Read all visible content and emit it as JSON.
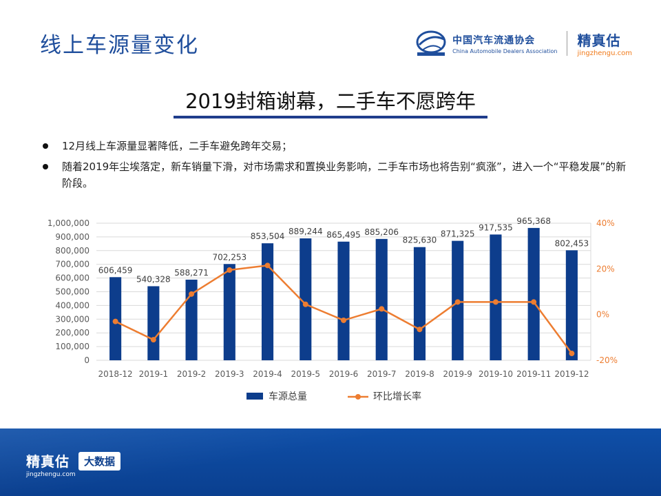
{
  "header": {
    "title": "线上车源量变化",
    "cada_name_cn": "中国汽车流通协会",
    "cada_name_en": "China Automobile Dealers Association",
    "brand_cn": "精真估",
    "brand_url": "jingzhengu.com"
  },
  "headline": "2019封箱谢幕，二手车不愿跨年",
  "bullets": [
    "12月线上车源量显著降低，二手车避免跨年交易；",
    "随着2019年尘埃落定，新车销量下滑，对市场需求和置换业务影响，二手车市场也将告别“疯涨”，进入一个“平稳发展”的新阶段。"
  ],
  "footer": {
    "brand_cn": "精真估",
    "brand_url": "jingzhengu.com",
    "tag": "大数据"
  },
  "colors": {
    "brand_blue": "#1f4e9c",
    "bar": "#0d3d8c",
    "line": "#ed7d31",
    "footer": "#0f4fa8"
  },
  "chart_data": {
    "type": "bar+line",
    "categories": [
      "2018-12",
      "2019-1",
      "2019-2",
      "2019-3",
      "2019-4",
      "2019-5",
      "2019-6",
      "2019-7",
      "2019-8",
      "2019-9",
      "2019-10",
      "2019-11",
      "2019-12"
    ],
    "series": [
      {
        "name": "车源总量",
        "type": "bar",
        "axis": "left",
        "values": [
          606459,
          540328,
          588271,
          702253,
          853504,
          889244,
          865495,
          885206,
          825630,
          871325,
          917535,
          965368,
          802453
        ],
        "labels": [
          "606,459",
          "540,328",
          "588,271",
          "702,253",
          "853,504",
          "889,244",
          "865,495",
          "885,206",
          "825,630",
          "871,325",
          "917,535",
          "965,368",
          "802,453"
        ]
      },
      {
        "name": "环比增长率",
        "type": "line",
        "axis": "right",
        "values": [
          -3,
          -11,
          9,
          19.5,
          21.5,
          4.5,
          -2.5,
          2.5,
          -6.5,
          5.5,
          5.5,
          5.5,
          -17
        ]
      }
    ],
    "left_axis": {
      "min": 0,
      "max": 1000000,
      "step": 100000,
      "ticks": [
        "0",
        "100,000",
        "200,000",
        "300,000",
        "400,000",
        "500,000",
        "600,000",
        "700,000",
        "800,000",
        "900,000",
        "1,000,000"
      ]
    },
    "right_axis": {
      "min": -20,
      "max": 40,
      "ticks": [
        "-20%",
        "0%",
        "20%",
        "40%"
      ]
    },
    "grid": true,
    "legend": "bottom-center"
  }
}
